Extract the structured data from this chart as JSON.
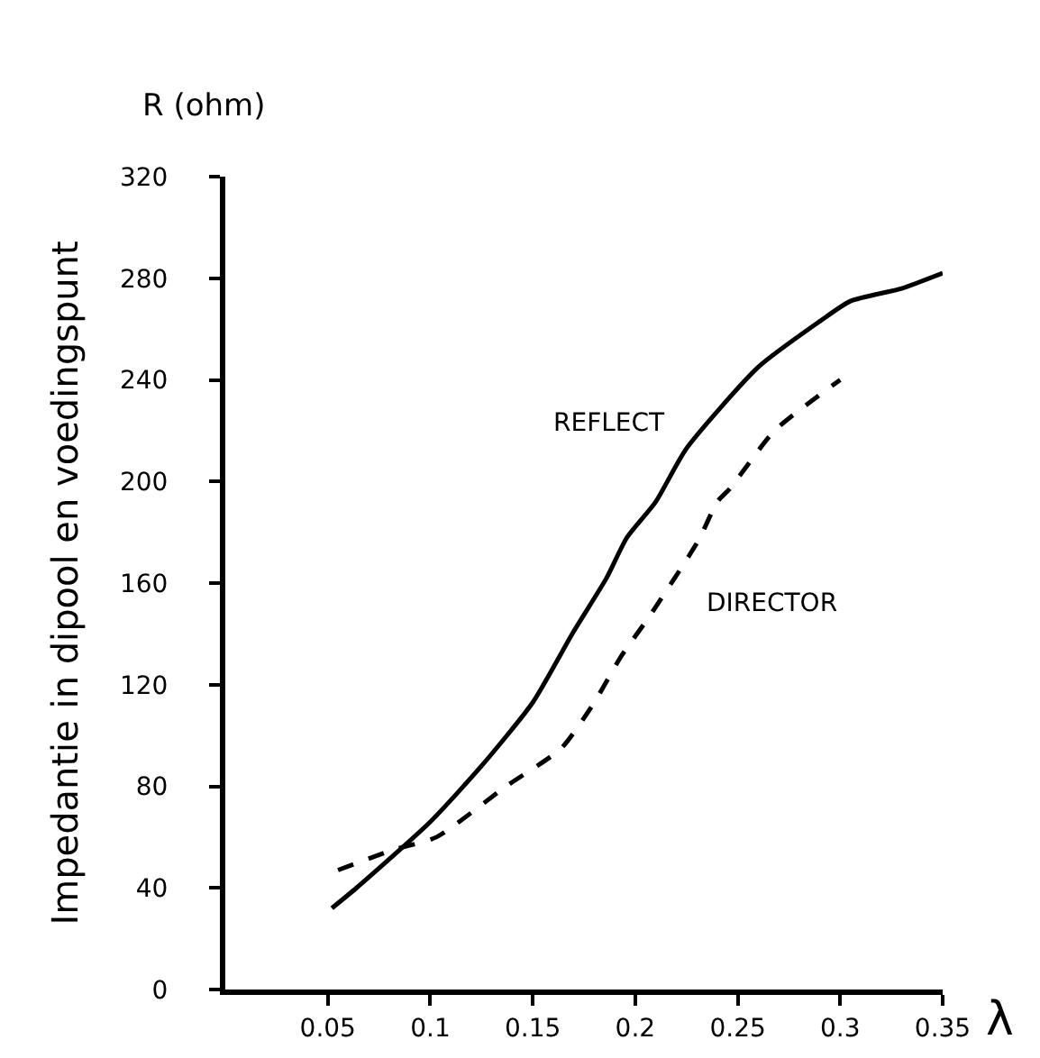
{
  "chart_data": {
    "type": "line",
    "ylabel": "Impedantie in dipool en voedingspunt",
    "xlabel": "λ",
    "annotations": [
      "R (ohm)"
    ],
    "x": [
      0.052,
      0.064,
      0.1,
      0.125,
      0.15,
      0.17,
      0.186,
      0.196,
      0.21,
      0.225,
      0.26,
      0.29,
      0.305,
      0.33,
      0.35
    ],
    "series": [
      {
        "name": "REFLECT",
        "color": "#000000",
        "line_style": "solid",
        "values": [
          32,
          40,
          66,
          88,
          113,
          141,
          162,
          178,
          192,
          213,
          245,
          263,
          271,
          276,
          282
        ]
      },
      {
        "name": "DIRECTOR",
        "color": "#000000",
        "line_style": "dashed",
        "x": [
          0.055,
          0.082,
          0.103,
          0.137,
          0.164,
          0.18,
          0.193,
          0.207,
          0.231,
          0.24,
          0.246,
          0.268,
          0.3
        ],
        "values": [
          47,
          55,
          60,
          80,
          95,
          113,
          131,
          147,
          177,
          192,
          197,
          220,
          240
        ]
      }
    ],
    "xlim": [
      0,
      0.35
    ],
    "xticks": [
      0.05,
      0.1,
      0.15,
      0.2,
      0.25,
      0.3,
      0.35
    ],
    "ylim": [
      0,
      320
    ],
    "yticks": [
      0,
      40,
      80,
      120,
      160,
      200,
      240,
      280,
      320
    ],
    "grid": false,
    "legend": false,
    "marker": "none"
  }
}
